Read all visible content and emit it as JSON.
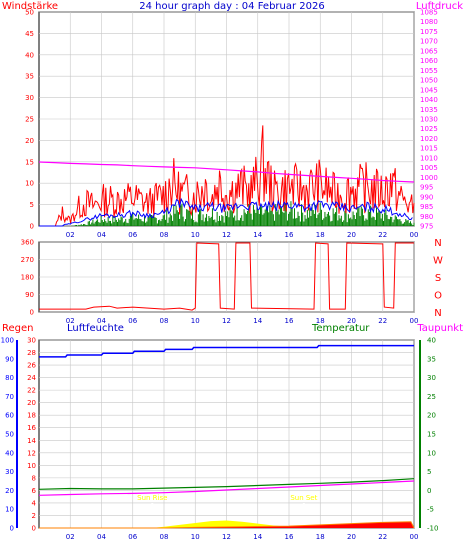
{
  "title": "24 hour graph day : 04 Februar 2026",
  "colors": {
    "red": "#ff0000",
    "blue": "#0000ff",
    "green": "#008000",
    "magenta": "#ff00ff",
    "yellow": "#ffff00",
    "navy": "#0000cc",
    "dark_red": "#cc0000",
    "grid": "#c8c8c8",
    "frame": "#ffffff",
    "plot_bg": "#fdfdfd"
  },
  "chart_data": [
    {
      "type": "line",
      "panel": "wind_pressure",
      "left_axis_label": "Windstärke",
      "right_axis_label": "Luftdruck",
      "x_ticks": [
        "02",
        "04",
        "06",
        "08",
        "10",
        "12",
        "14",
        "16",
        "18",
        "20",
        "22",
        "00"
      ],
      "xlim": [
        0,
        24
      ],
      "ylim_left": [
        0,
        50
      ],
      "y_ticks_left": [
        0,
        5,
        10,
        15,
        20,
        25,
        30,
        35,
        40,
        45,
        50
      ],
      "ylim_right": [
        975,
        1085
      ],
      "y_ticks_right": [
        975,
        980,
        985,
        990,
        995,
        1000,
        1005,
        1010,
        1015,
        1020,
        1025,
        1030,
        1035,
        1040,
        1045,
        1050,
        1055,
        1060,
        1065,
        1070,
        1075,
        1080,
        1085
      ],
      "series": [
        {
          "name": "Luftdruck",
          "axis": "right",
          "color": "#ff00ff",
          "x": [
            0,
            1,
            2,
            3,
            4,
            5,
            6,
            7,
            8,
            9,
            10,
            11,
            12,
            13,
            14,
            15,
            16,
            17,
            18,
            19,
            20,
            21,
            22,
            23,
            24
          ],
          "y": [
            1007.9,
            1007.6,
            1007.2,
            1006.9,
            1006.6,
            1006.4,
            1006.0,
            1005.7,
            1005.4,
            1005.1,
            1004.9,
            1004.4,
            1003.9,
            1003.3,
            1002.8,
            1002.1,
            1001.5,
            1001.0,
            1000.5,
            1000.0,
            999.5,
            999.0,
            998.4,
            998.0,
            997.6
          ]
        },
        {
          "name": "Windstärke",
          "axis": "left",
          "color": "#ff0000",
          "style": "gust",
          "x": [
            0,
            1,
            1.5,
            2,
            2.5,
            3,
            3.5,
            4,
            5,
            6,
            7,
            8,
            8.5,
            9,
            10,
            10.7,
            11,
            11.5,
            12,
            13,
            13.5,
            14,
            14.3,
            15,
            16,
            17,
            18,
            19,
            20,
            21,
            22,
            22.5,
            23,
            23.5,
            24
          ],
          "y": [
            0,
            0,
            5,
            2,
            7,
            9,
            8,
            10,
            10,
            11,
            9,
            12,
            17,
            13,
            12,
            16,
            10,
            17,
            13,
            15,
            13,
            18,
            24,
            13,
            15,
            14,
            16,
            12,
            14,
            15,
            13,
            17,
            12,
            9,
            7
          ]
        },
        {
          "name": "Windstärke",
          "axis": "left",
          "color": "#0000ff",
          "style": "mean",
          "x": [
            0,
            1,
            2,
            3,
            4,
            5,
            6,
            7,
            8,
            9,
            10,
            11,
            12,
            13,
            14,
            15,
            16,
            17,
            18,
            19,
            20,
            21,
            22,
            23,
            24
          ],
          "y": [
            0,
            0,
            0.5,
            1.5,
            2.5,
            2.5,
            3,
            2.5,
            3,
            5.5,
            4,
            4.5,
            4,
            5,
            4.5,
            4.5,
            5,
            4.5,
            5,
            4.5,
            4,
            4.5,
            4,
            3,
            1.5
          ]
        },
        {
          "name": "Windstärke",
          "axis": "left",
          "color": "#008000",
          "style": "bars",
          "x": [
            0,
            1,
            2,
            3,
            4,
            5,
            6,
            7,
            8,
            9,
            10,
            11,
            12,
            13,
            14,
            15,
            16,
            17,
            18,
            19,
            20,
            21,
            22,
            23,
            24
          ],
          "y": [
            0,
            0,
            0,
            0.5,
            1.5,
            1.5,
            2,
            1.5,
            2,
            3.5,
            2.5,
            3,
            2.5,
            3.5,
            3,
            3,
            3.5,
            3,
            3.5,
            3,
            2.5,
            3,
            2.5,
            1.5,
            0.5
          ]
        }
      ]
    },
    {
      "type": "line",
      "panel": "wind_direction",
      "x_ticks": [
        "02",
        "04",
        "06",
        "08",
        "10",
        "12",
        "14",
        "16",
        "18",
        "20",
        "22",
        "00"
      ],
      "xlim": [
        0,
        24
      ],
      "ylim": [
        0,
        360
      ],
      "y_ticks": [
        0,
        90,
        180,
        270,
        360
      ],
      "compass_labels": [
        "N",
        "W",
        "S",
        "O",
        "N"
      ],
      "series": [
        {
          "name": "Windrichtung",
          "color": "#ff0000",
          "x": [
            0,
            3,
            3.5,
            4.5,
            5,
            6,
            8,
            9,
            9.8,
            10,
            10.1,
            11.5,
            11.6,
            12.5,
            12.6,
            13.5,
            13.6,
            17.6,
            17.7,
            18.5,
            18.6,
            19.6,
            19.7,
            22,
            22.1,
            22.7,
            22.8,
            24
          ],
          "y": [
            15,
            15,
            25,
            30,
            20,
            25,
            15,
            20,
            10,
            20,
            355,
            350,
            20,
            15,
            355,
            355,
            20,
            15,
            355,
            350,
            15,
            15,
            355,
            350,
            25,
            20,
            355,
            355
          ]
        }
      ]
    },
    {
      "type": "line",
      "panel": "rain_humidity_temperature",
      "labels": {
        "rain": "Regen",
        "humidity": "Luftfeuchte",
        "temperature": "Temperatur",
        "dewpoint": "Taupunkt",
        "sunrise": "Sun Rise",
        "sunset": "Sun Set"
      },
      "x_ticks": [
        "02",
        "04",
        "06",
        "08",
        "10",
        "12",
        "14",
        "16",
        "18",
        "20",
        "22",
        "00"
      ],
      "xlim": [
        0,
        24
      ],
      "ylim_humidity": [
        0,
        100
      ],
      "y_ticks_humidity": [
        0,
        10,
        20,
        30,
        40,
        50,
        60,
        70,
        80,
        90,
        100
      ],
      "ylim_rain": [
        0,
        30
      ],
      "y_ticks_rain": [
        0,
        2,
        4,
        6,
        8,
        10,
        12,
        14,
        16,
        18,
        20,
        22,
        24,
        26,
        28,
        30
      ],
      "ylim_temperature": [
        -10,
        40
      ],
      "y_ticks_temperature": [
        -10,
        -5,
        0,
        5,
        10,
        15,
        20,
        25,
        30,
        35,
        40
      ],
      "sunrise_x": 7.25,
      "sunset_x": 16.95,
      "series": [
        {
          "name": "Luftfeuchte",
          "axis": "humidity",
          "color": "#0000ff",
          "x": [
            0,
            1.7,
            1.8,
            4,
            4.1,
            6,
            6.1,
            8,
            8.1,
            9.8,
            9.9,
            17.8,
            17.9,
            24
          ],
          "y": [
            91,
            91,
            92,
            92,
            93,
            93,
            94,
            94,
            95,
            95,
            96,
            96,
            97,
            97
          ]
        },
        {
          "name": "Temperatur",
          "axis": "temperature",
          "color": "#008000",
          "x": [
            0,
            2,
            4,
            6,
            8,
            10,
            12,
            14,
            16,
            18,
            20,
            22,
            24
          ],
          "y": [
            0.3,
            0.5,
            0.4,
            0.4,
            0.6,
            0.8,
            1.0,
            1.3,
            1.6,
            1.9,
            2.2,
            2.6,
            3.1
          ]
        },
        {
          "name": "Taupunkt",
          "axis": "temperature",
          "color": "#ff00ff",
          "x": [
            0,
            2,
            4,
            6,
            8,
            10,
            12,
            14,
            16,
            18,
            20,
            22,
            24
          ],
          "y": [
            -1.3,
            -1.1,
            -0.9,
            -0.8,
            -0.6,
            -0.3,
            0.1,
            0.5,
            0.9,
            1.3,
            1.7,
            2.1,
            2.5
          ]
        },
        {
          "name": "Regen",
          "axis": "rain",
          "color": "#ff0000",
          "x": [
            0,
            8,
            10,
            13,
            16,
            19,
            22,
            23.8,
            24
          ],
          "y": [
            0,
            0,
            0.1,
            0.2,
            0.3,
            0.6,
            0.9,
            1.0,
            0
          ]
        },
        {
          "name": "Solar",
          "axis": "rain",
          "color": "#ffff00",
          "x": [
            7.2,
            8,
            9,
            10,
            11,
            12,
            13,
            14,
            15,
            16,
            17
          ],
          "y": [
            0,
            0.2,
            0.5,
            0.8,
            1.1,
            1.2,
            1.0,
            0.7,
            0.4,
            0.2,
            0
          ]
        }
      ]
    }
  ]
}
